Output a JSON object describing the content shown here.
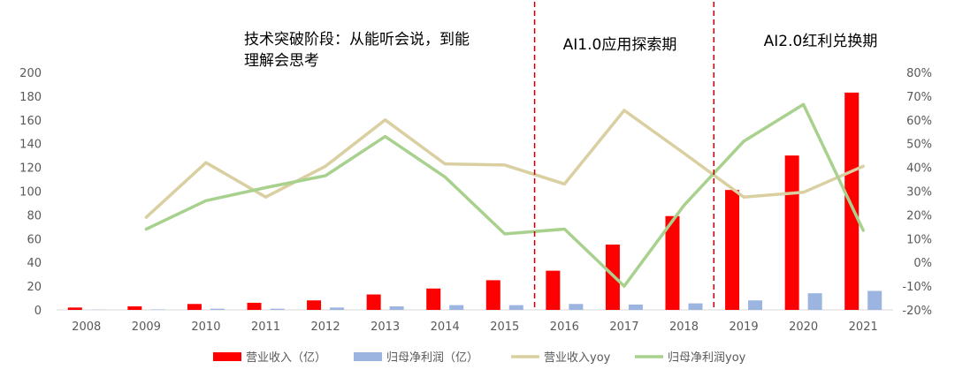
{
  "chart_data": {
    "type": "bar",
    "categories": [
      "2008",
      "2009",
      "2010",
      "2011",
      "2012",
      "2013",
      "2014",
      "2015",
      "2016",
      "2017",
      "2018",
      "2019",
      "2020",
      "2021"
    ],
    "series": [
      {
        "name": "营业收入（亿）",
        "type": "bar",
        "axis": "left",
        "color": "#ff0000",
        "values": [
          2,
          3,
          5,
          6,
          8,
          13,
          18,
          25,
          33,
          55,
          79,
          101,
          130,
          183
        ]
      },
      {
        "name": "归母净利润（亿）",
        "type": "bar",
        "axis": "left",
        "color": "#9bb5e0",
        "values": [
          0.2,
          0.4,
          1,
          1,
          2,
          3,
          4,
          4,
          5,
          4.5,
          5.5,
          8,
          14,
          16
        ]
      },
      {
        "name": "营业收入yoy",
        "type": "line",
        "axis": "right",
        "color": "#d9cfa0",
        "values": [
          null,
          19,
          42,
          27.5,
          40.5,
          60,
          41.5,
          41,
          33,
          64,
          46,
          27.5,
          29.5,
          40.5
        ]
      },
      {
        "name": "归母净利润yoy",
        "type": "line",
        "axis": "right",
        "color": "#a9d18e",
        "values": [
          null,
          14,
          26,
          31.5,
          36.5,
          53,
          36,
          12,
          14,
          -10,
          24,
          51,
          66.5,
          13.5
        ]
      }
    ],
    "y_left": {
      "min": 0,
      "max": 200,
      "step": 20,
      "tick_labels": [
        "0",
        "20",
        "40",
        "60",
        "80",
        "100",
        "120",
        "140",
        "160",
        "180",
        "200"
      ]
    },
    "y_right": {
      "min": -20,
      "max": 80,
      "step": 10,
      "tick_labels": [
        "-20%",
        "-10%",
        "0%",
        "10%",
        "20%",
        "30%",
        "40%",
        "50%",
        "60%",
        "70%",
        "80%"
      ]
    },
    "grid": false,
    "legend": "bottom",
    "phase_dividers_after": [
      "2015",
      "2018"
    ],
    "phase_divider_color": "#c00000",
    "annotations": [
      {
        "lines": [
          "技术突破阶段：从能听会说，到能",
          "理解会思考"
        ]
      },
      {
        "lines": [
          "AI1.0应用探索期"
        ]
      },
      {
        "lines": [
          "AI2.0红利兑换期"
        ]
      }
    ]
  }
}
